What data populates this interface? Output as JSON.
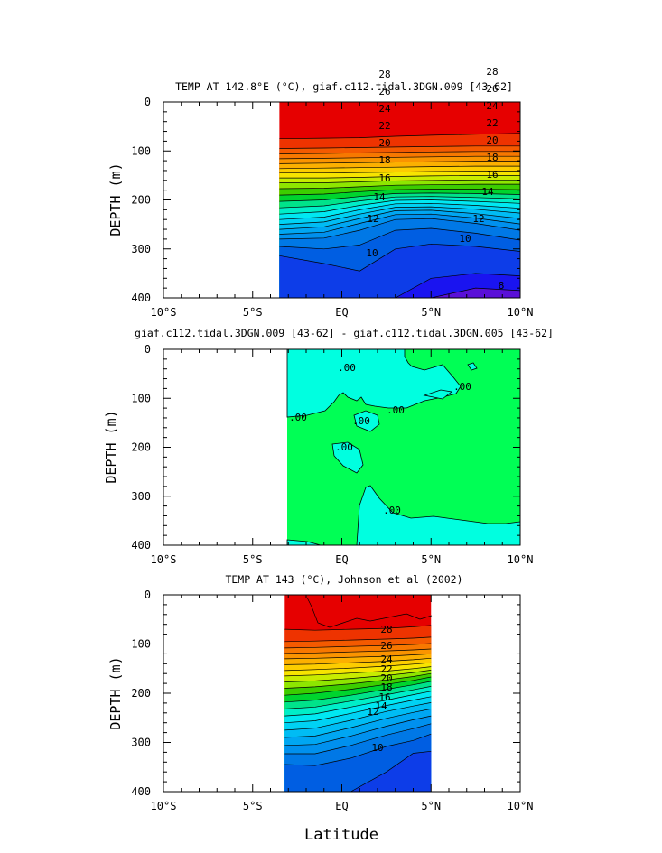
{
  "figure": {
    "xlabel": "Latitude",
    "xticks": [
      "10°S",
      "5°S",
      "EQ",
      "5°N",
      "10°N"
    ],
    "colors": {
      "t29": "#e60000",
      "t28": "#ee3300",
      "t27": "#f45a00",
      "t26": "#f77800",
      "t25": "#fa9400",
      "t24": "#fcb000",
      "t23": "#fccd00",
      "t22": "#f7e400",
      "t21": "#c8ec00",
      "t20": "#8ee600",
      "t19": "#3ccd00",
      "t18": "#00d42e",
      "t17": "#00e38a",
      "t16": "#00eec8",
      "t15": "#00e8f2",
      "t14": "#00d2f4",
      "t13": "#00bcf4",
      "t12": "#00a6f2",
      "t11": "#0090ee",
      "t10": "#0078e6",
      "t9": "#005ee2",
      "t8": "#0d3de8",
      "t7": "#1a14f0",
      "t6": "#5a10d8",
      "diff_pos": "#00ff55",
      "diff_neg": "#00ffe0"
    }
  },
  "chart_data": [
    {
      "type": "contour",
      "title": "TEMP AT 142.8°E (°C), giaf.c112.tidal.3DGN.009 [43-62]",
      "ylabel": "DEPTH (m)",
      "xlim": [
        -10,
        10
      ],
      "ylim": [
        400,
        0
      ],
      "yticks": [
        "0",
        "100",
        "200",
        "300",
        "400"
      ],
      "data_extent_lat": [
        -3.5,
        10
      ],
      "isotherms": [
        {
          "t": 28,
          "depth": [
            75,
            74,
            73,
            70,
            68,
            66,
            64
          ]
        },
        {
          "t": 27,
          "depth": [
            95,
            94,
            93,
            92,
            91,
            90,
            90
          ]
        },
        {
          "t": 26,
          "depth": [
            106,
            105,
            104,
            103,
            102,
            101,
            101
          ]
        },
        {
          "t": 25,
          "depth": [
            116,
            115,
            114,
            113,
            112,
            111,
            111
          ]
        },
        {
          "t": 24,
          "depth": [
            126,
            125,
            124,
            123,
            122,
            121,
            121
          ]
        },
        {
          "t": 23,
          "depth": [
            136,
            135,
            134,
            133,
            132,
            131,
            131
          ]
        },
        {
          "t": 22,
          "depth": [
            145,
            145,
            144,
            143,
            142,
            141,
            141
          ]
        },
        {
          "t": 21,
          "depth": [
            155,
            155,
            154,
            152,
            151,
            150,
            150
          ]
        },
        {
          "t": 20,
          "depth": [
            165,
            165,
            163,
            161,
            160,
            159,
            159
          ]
        },
        {
          "t": 19,
          "depth": [
            177,
            176,
            173,
            170,
            169,
            168,
            168
          ]
        },
        {
          "t": 18,
          "depth": [
            190,
            188,
            183,
            179,
            178,
            178,
            179
          ]
        },
        {
          "t": 17,
          "depth": [
            203,
            200,
            193,
            187,
            186,
            187,
            189
          ]
        },
        {
          "t": 16,
          "depth": [
            216,
            212,
            202,
            194,
            193,
            195,
            198
          ]
        },
        {
          "t": 15,
          "depth": [
            229,
            224,
            211,
            201,
            200,
            203,
            207
          ]
        },
        {
          "t": 14,
          "depth": [
            240,
            235,
            220,
            208,
            207,
            211,
            217
          ]
        },
        {
          "t": 13,
          "depth": [
            250,
            245,
            229,
            215,
            214,
            219,
            227
          ]
        },
        {
          "t": 12,
          "depth": [
            260,
            255,
            238,
            222,
            221,
            228,
            238
          ]
        },
        {
          "t": 11,
          "depth": [
            270,
            266,
            248,
            230,
            229,
            237,
            249
          ]
        },
        {
          "t": 10,
          "depth": [
            280,
            278,
            262,
            240,
            238,
            248,
            262
          ]
        },
        {
          "t": 9,
          "depth": [
            295,
            300,
            292,
            262,
            258,
            268,
            282
          ]
        },
        {
          "t": 8,
          "depth": [
            314,
            330,
            345,
            300,
            290,
            295,
            305
          ]
        },
        {
          "t": 7,
          "depth": [
            400,
            400,
            400,
            400,
            360,
            350,
            355
          ]
        },
        {
          "t": 6,
          "depth": [
            400,
            400,
            400,
            400,
            400,
            380,
            385
          ]
        }
      ],
      "isotherm_lats": [
        -3.5,
        -1,
        1,
        3,
        5,
        7.5,
        10
      ],
      "labels": [
        "28",
        "26",
        "24",
        "22",
        "20",
        "18",
        "16",
        "14",
        "12",
        "10",
        "8"
      ],
      "labels_right": [
        "28",
        "26",
        "24",
        "22",
        "20",
        "18",
        "16",
        "14",
        "12",
        "10"
      ]
    },
    {
      "type": "contour",
      "title": "giaf.c112.tidal.3DGN.009 [43-62] - giaf.c112.tidal.3DGN.005 [43-62]",
      "ylabel": "DEPTH (m)",
      "xlim": [
        -10,
        10
      ],
      "ylim": [
        400,
        0
      ],
      "yticks": [
        "0",
        "100",
        "200",
        "300",
        "400"
      ],
      "data_extent_lat": [
        -3.5,
        10
      ],
      "contour_labels": [
        ".00",
        ".00",
        ".00",
        ".00",
        ".00",
        ".00",
        ".00"
      ]
    },
    {
      "type": "contour",
      "title": "TEMP AT 143 (°C), Johnson et al (2002)",
      "ylabel": "DEPTH (m)",
      "xlim": [
        -10,
        10
      ],
      "ylim": [
        400,
        0
      ],
      "yticks": [
        "0",
        "100",
        "200",
        "300",
        "400"
      ],
      "data_extent_lat": [
        -3.2,
        5
      ],
      "isotherms": [
        {
          "t": 28,
          "depth": [
            70,
            72,
            70,
            68,
            65,
            62
          ]
        },
        {
          "t": 27,
          "depth": [
            95,
            94,
            92,
            90,
            88,
            86
          ]
        },
        {
          "t": 26,
          "depth": [
            108,
            107,
            105,
            103,
            101,
            99
          ]
        },
        {
          "t": 25,
          "depth": [
            119,
            118,
            116,
            114,
            112,
            110
          ]
        },
        {
          "t": 24,
          "depth": [
            130,
            129,
            127,
            125,
            122,
            120
          ]
        },
        {
          "t": 23,
          "depth": [
            142,
            141,
            138,
            135,
            132,
            129
          ]
        },
        {
          "t": 22,
          "depth": [
            154,
            152,
            149,
            145,
            141,
            138
          ]
        },
        {
          "t": 21,
          "depth": [
            165,
            163,
            159,
            155,
            150,
            146
          ]
        },
        {
          "t": 20,
          "depth": [
            177,
            175,
            170,
            164,
            158,
            153
          ]
        },
        {
          "t": 19,
          "depth": [
            190,
            187,
            181,
            173,
            166,
            160
          ]
        },
        {
          "t": 18,
          "depth": [
            204,
            200,
            192,
            182,
            174,
            167
          ]
        },
        {
          "t": 17,
          "depth": [
            218,
            214,
            204,
            192,
            183,
            176
          ]
        },
        {
          "t": 16,
          "depth": [
            232,
            228,
            216,
            203,
            193,
            186
          ]
        },
        {
          "t": 15,
          "depth": [
            246,
            242,
            228,
            214,
            203,
            196
          ]
        },
        {
          "t": 14,
          "depth": [
            260,
            256,
            241,
            225,
            214,
            207
          ]
        },
        {
          "t": 13,
          "depth": [
            275,
            271,
            255,
            237,
            226,
            219
          ]
        },
        {
          "t": 12,
          "depth": [
            290,
            287,
            270,
            251,
            239,
            232
          ]
        },
        {
          "t": 11,
          "depth": [
            306,
            304,
            287,
            267,
            254,
            246
          ]
        },
        {
          "t": 10,
          "depth": [
            323,
            323,
            306,
            285,
            272,
            262
          ]
        },
        {
          "t": 9,
          "depth": [
            345,
            347,
            332,
            308,
            296,
            283
          ]
        },
        {
          "t": 8,
          "depth": [
            400,
            400,
            400,
            360,
            322,
            318
          ]
        }
      ],
      "isotherm_lats": [
        -3.2,
        -1.5,
        0.5,
        2.5,
        4,
        5
      ],
      "labels": [
        "28",
        "26",
        "24",
        "22",
        "20",
        "18",
        "16",
        "14",
        "12",
        "10"
      ]
    }
  ]
}
